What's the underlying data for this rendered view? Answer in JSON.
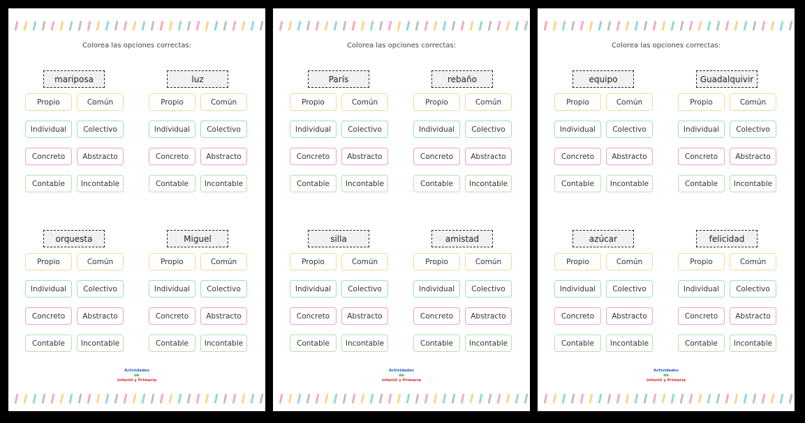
{
  "pages": [
    {
      "instruction": "Colorea las opciones correctas:",
      "words": [
        "mariposa",
        "luz",
        "orquesta",
        "Miguel"
      ]
    },
    {
      "instruction": "Colorea las opciones correctas:",
      "words": [
        "París",
        "rebaño",
        "silla",
        "amistad"
      ]
    },
    {
      "instruction": "Colorea las opciones correctas:",
      "words": [
        "equipo",
        "Guadalquivir",
        "azúcar",
        "felicidad"
      ]
    }
  ],
  "options": [
    [
      "Propio",
      "Común"
    ],
    [
      "Individual",
      "Colectivo"
    ],
    [
      "Concreto",
      "Abstracto"
    ],
    [
      "Contable",
      "Incontable"
    ]
  ],
  "logo": [
    "Actividades",
    "de",
    "Infantil y Primaria"
  ]
}
